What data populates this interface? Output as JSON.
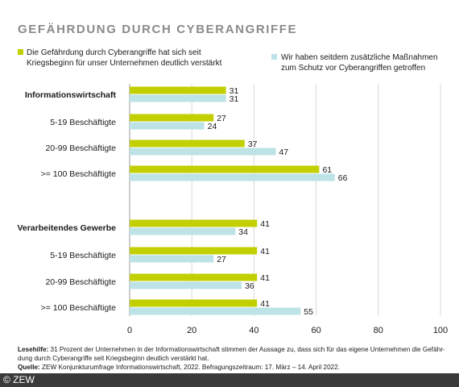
{
  "chart_data": {
    "type": "bar",
    "orientation": "horizontal",
    "title": "GEFÄHRDUNG DURCH CYBERANGRIFFE",
    "categories": [
      "Informationswirtschaft",
      "5-19 Beschäftigte",
      "20-99 Beschäftigte",
      ">= 100 Beschäftigte",
      "Verarbeitendes Gewerbe",
      "5-19 Beschäftigte",
      "20-99 Beschäftigte",
      ">= 100 Beschäftigte"
    ],
    "group_headers": [
      true,
      false,
      false,
      false,
      true,
      false,
      false,
      false
    ],
    "series": [
      {
        "name": "Die Gefährdung durch Cyberangriffe hat sich seit Kriegsbeginn für unser Unternehmen deutlich verstärkt",
        "name_lines": [
          "Die Gefährdung durch Cyberangriffe hat sich seit",
          "Kriegsbeginn für unser Unternehmen deutlich verstärkt"
        ],
        "color": "#c2cf00",
        "values": [
          31,
          27,
          37,
          61,
          41,
          41,
          41,
          41
        ]
      },
      {
        "name": "Wir haben seitdem zusätzliche Maßnahmen zum Schutz vor Cyberangriffen getroffen",
        "name_lines": [
          "Wir haben seitdem zusätzliche Maßnahmen",
          "zum Schutz vor Cyberangriffen getroffen"
        ],
        "color": "#bde3e6",
        "values": [
          31,
          24,
          47,
          66,
          34,
          27,
          36,
          55
        ]
      }
    ],
    "xlim": [
      0,
      100
    ],
    "xticks": [
      0,
      20,
      40,
      60,
      80,
      100
    ],
    "grid": true,
    "legend_position": "top"
  },
  "note": {
    "lesehilfe_label": "Lesehilfe:",
    "lesehilfe_line1": " 31 Prozent der Unternehmen in der Informationswirtschaft stimmen der Aussage zu, dass sich für das eigene Unternehmen die Gefähr-",
    "lesehilfe_line2": "dung durch Cyberangriffe seit Kriegsbeginn deutlich verstärkt hat.",
    "quelle_label": "Quelle:",
    "quelle_text": " ZEW Konjunkturumfrage Informationswirtschaft, 2022. Befragungszeitraum: 17. März – 14. April 2022."
  },
  "copyright": "© ZEW"
}
